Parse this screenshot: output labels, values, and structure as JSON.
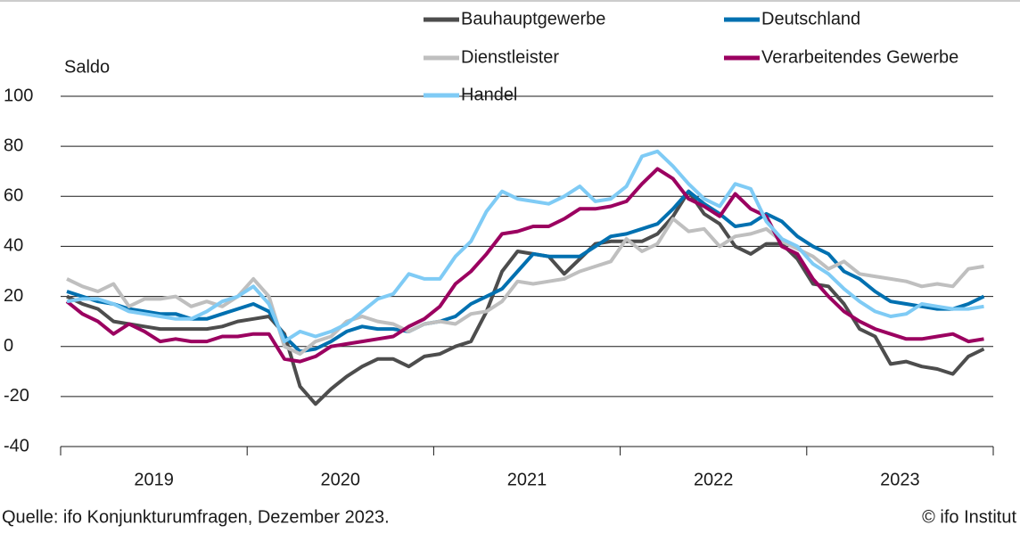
{
  "chart_data": {
    "type": "line",
    "y_label": "Saldo",
    "years": [
      "2019",
      "2020",
      "2021",
      "2022",
      "2023"
    ],
    "ylim": [
      -40,
      100
    ],
    "yticks": [
      -40,
      -20,
      0,
      20,
      40,
      60,
      80,
      100
    ],
    "grid": true,
    "series": [
      {
        "name": "Bauhauptgewerbe",
        "color": "#4d4d4d",
        "values": [
          20,
          17,
          15,
          10,
          9,
          8,
          7,
          7,
          7,
          7,
          8,
          10,
          11,
          12,
          5,
          -16,
          -23,
          -17,
          -12,
          -8,
          -5,
          -5,
          -8,
          -4,
          -3,
          0,
          2,
          14,
          30,
          38,
          37,
          36,
          29,
          35,
          41,
          42,
          42,
          42,
          45,
          52,
          62,
          53,
          49,
          40,
          37,
          41,
          41,
          35,
          25,
          24,
          17,
          7,
          4,
          -7,
          -6,
          -8,
          -9,
          -11,
          -4,
          -1
        ]
      },
      {
        "name": "Deutschland",
        "color": "#0070b0",
        "values": [
          22,
          20,
          18,
          17,
          15,
          14,
          13,
          13,
          11,
          11,
          13,
          15,
          17,
          14,
          4,
          -2,
          -1,
          2,
          6,
          8,
          7,
          7,
          6,
          9,
          10,
          12,
          17,
          20,
          23,
          30,
          37,
          36,
          36,
          36,
          40,
          44,
          45,
          47,
          49,
          55,
          62,
          57,
          53,
          48,
          49,
          53,
          50,
          44,
          40,
          37,
          30,
          27,
          22,
          18,
          17,
          16,
          15,
          15,
          17,
          20
        ]
      },
      {
        "name": "Dienstleister",
        "color": "#bfbfbf",
        "values": [
          27,
          24,
          22,
          25,
          16,
          19,
          19,
          20,
          16,
          18,
          16,
          20,
          27,
          20,
          0,
          -3,
          2,
          4,
          10,
          12,
          10,
          9,
          6,
          9,
          10,
          9,
          13,
          14,
          18,
          26,
          25,
          26,
          27,
          30,
          32,
          34,
          43,
          38,
          41,
          51,
          46,
          47,
          40,
          44,
          45,
          47,
          42,
          39,
          36,
          31,
          34,
          29,
          28,
          27,
          26,
          24,
          25,
          24,
          31,
          32
        ]
      },
      {
        "name": "Verarbeitendes Gewerbe",
        "color": "#9b0060",
        "values": [
          18,
          13,
          10,
          5,
          9,
          6,
          2,
          3,
          2,
          2,
          4,
          4,
          5,
          5,
          -5,
          -6,
          -4,
          0,
          1,
          2,
          3,
          4,
          8,
          11,
          16,
          25,
          30,
          37,
          45,
          46,
          48,
          48,
          51,
          55,
          55,
          56,
          58,
          65,
          71,
          67,
          59,
          56,
          52,
          61,
          55,
          52,
          40,
          37,
          27,
          20,
          14,
          10,
          7,
          5,
          3,
          3,
          4,
          5,
          2,
          3
        ]
      },
      {
        "name": "Handel",
        "color": "#7fcbf5",
        "values": [
          18,
          19,
          19,
          17,
          14,
          13,
          12,
          11,
          11,
          14,
          18,
          20,
          24,
          17,
          2,
          6,
          4,
          6,
          9,
          14,
          19,
          21,
          29,
          27,
          27,
          36,
          42,
          54,
          62,
          59,
          58,
          57,
          60,
          64,
          58,
          59,
          64,
          76,
          78,
          72,
          65,
          59,
          56,
          65,
          63,
          50,
          43,
          40,
          33,
          29,
          23,
          18,
          14,
          12,
          13,
          17,
          16,
          15,
          15,
          16
        ]
      }
    ],
    "source": "Quelle: ifo Konjunkturumfragen, Dezember 2023.",
    "credit": "© ifo Institut"
  }
}
